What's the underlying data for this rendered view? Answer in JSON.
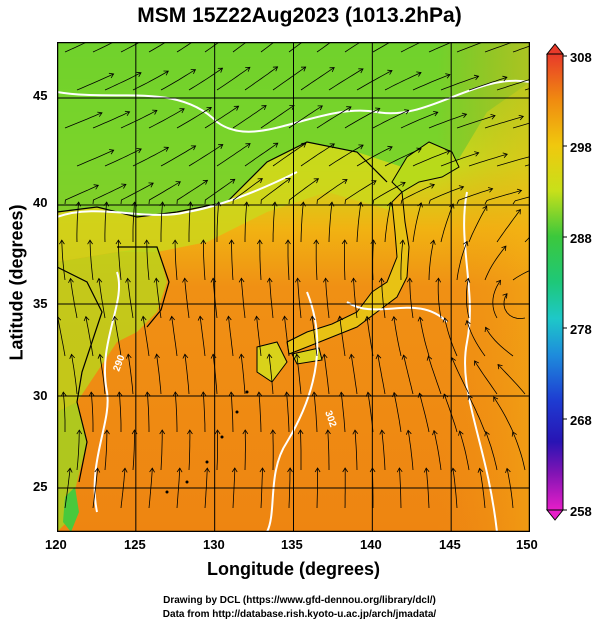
{
  "title": "MSM 15Z22Aug2023 (1013.2hPa)",
  "axes": {
    "xlabel": "Longitude (degrees)",
    "ylabel": "Latitude  (degrees)",
    "xticks": [
      "120",
      "125",
      "130",
      "135",
      "140",
      "145",
      "150"
    ],
    "yticks": [
      "25",
      "30",
      "35",
      "40",
      "45"
    ],
    "xlim": [
      120,
      150
    ],
    "ylim": [
      22.4,
      47.6
    ]
  },
  "colorbar": {
    "ticks": [
      "308",
      "298",
      "288",
      "278",
      "268",
      "258"
    ],
    "range": [
      258,
      308
    ]
  },
  "contour_labels": [
    "290",
    "302"
  ],
  "credits": {
    "line1": "Drawing by DCL (https://www.gfd-dennou.org/library/dcl/)",
    "line2": "Data from http://database.rish.kyoto-u.ac.jp/arch/jmadata/"
  },
  "colors": {
    "sea_warm": "#f08a10",
    "land_cool": "#5ad23c",
    "mid": "#e6d20f",
    "contour": "#ffffff",
    "streamline": "#000000"
  }
}
